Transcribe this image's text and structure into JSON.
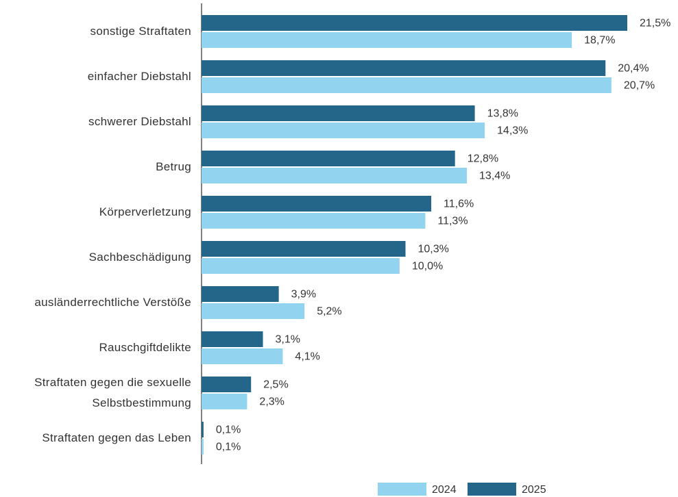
{
  "chart_data": {
    "type": "bar",
    "orientation": "horizontal",
    "categories": [
      "sonstige Straftaten",
      "einfacher Diebstahl",
      "schwerer Diebstahl",
      "Betrug",
      "Körperverletzung",
      "Sachbeschädigung",
      "ausländerrechtliche Verstöße",
      "Rauschgiftdelikte",
      "Straftaten gegen die sexuelle Selbstbestimmung",
      "Straftaten gegen das Leben"
    ],
    "series": [
      {
        "name": "2025",
        "color": "#24668a",
        "values": [
          21.5,
          20.4,
          13.8,
          12.8,
          11.6,
          10.3,
          3.9,
          3.1,
          2.5,
          0.1
        ],
        "value_labels": [
          "21,5%",
          "20,4%",
          "13,8%",
          "12,8%",
          "11,6%",
          "10,3%",
          "3,9%",
          "3,1%",
          "2,5%",
          "0,1%"
        ]
      },
      {
        "name": "2024",
        "color": "#92d4ef",
        "values": [
          18.7,
          20.7,
          14.3,
          13.4,
          11.3,
          10.0,
          5.2,
          4.1,
          2.3,
          0.1
        ],
        "value_labels": [
          "18,7%",
          "20,7%",
          "14,3%",
          "13,4%",
          "11,3%",
          "10,0%",
          "5,2%",
          "4,1%",
          "2,3%",
          "0,1%"
        ]
      }
    ],
    "legend": "bottom"
  }
}
